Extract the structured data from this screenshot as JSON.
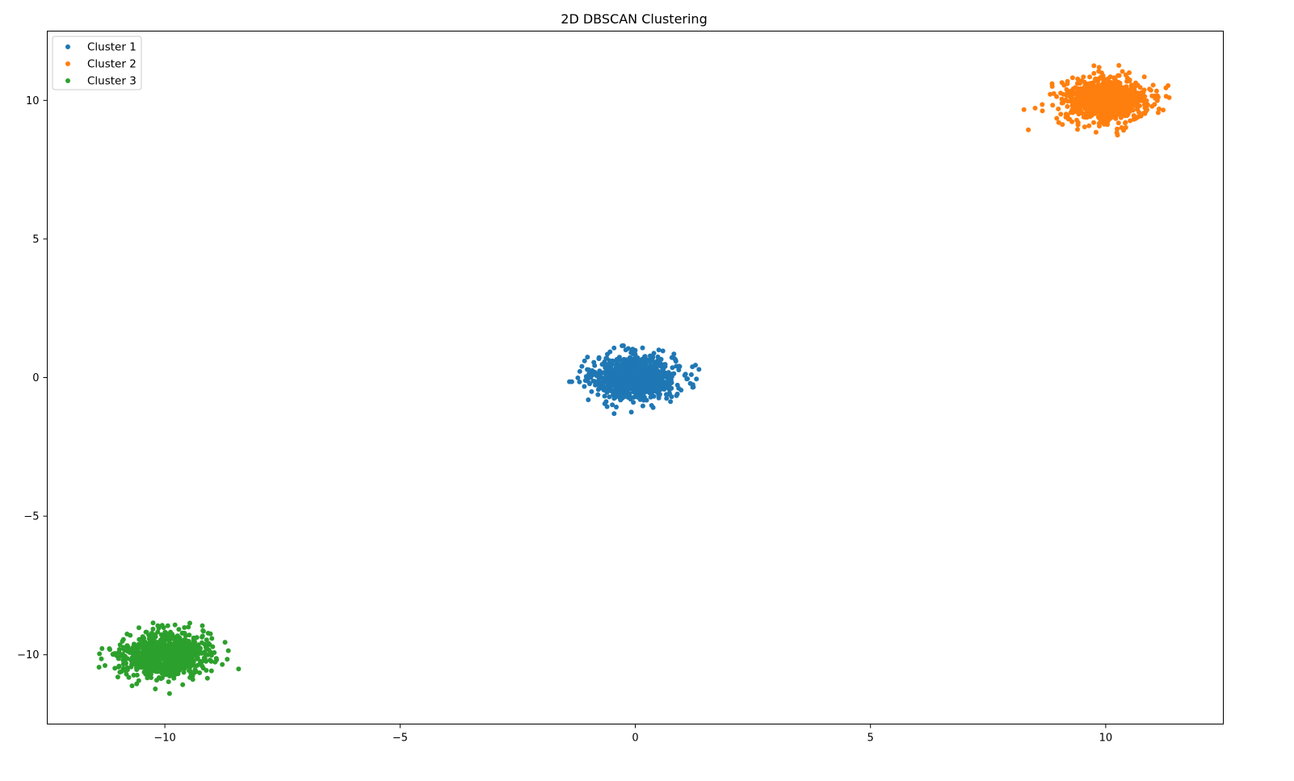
{
  "chart_data": {
    "type": "scatter",
    "title": "2D DBSCAN Clustering",
    "xlabel": "",
    "ylabel": "",
    "xlim": [
      -12.5,
      12.5
    ],
    "ylim": [
      -12.5,
      12.5
    ],
    "xticks": [
      -10,
      -5,
      0,
      5,
      10
    ],
    "xtick_labels": [
      "−10",
      "−5",
      "0",
      "5",
      "10"
    ],
    "yticks": [
      -10,
      -5,
      0,
      5,
      10
    ],
    "ytick_labels": [
      "−10",
      "−5",
      "0",
      "5",
      "10"
    ],
    "grid": false,
    "legend_position": "upper-left",
    "series": [
      {
        "name": "Cluster 1",
        "color": "#1f77b4",
        "center": [
          0,
          0
        ],
        "points": [
          [
            -0.42,
            0.31
          ],
          [
            0.18,
            -0.27
          ],
          [
            0.55,
            0.12
          ],
          [
            -0.71,
            -0.18
          ],
          [
            0.93,
            0.41
          ],
          [
            -1.18,
            0.22
          ],
          [
            1.22,
            -0.35
          ],
          [
            0.07,
            0.62
          ],
          [
            -0.33,
            -0.58
          ],
          [
            0.66,
            -0.61
          ],
          [
            -0.88,
            0.55
          ],
          [
            1.05,
            0.08
          ],
          [
            -1.35,
            -0.15
          ],
          [
            1.28,
            0.45
          ],
          [
            -0.15,
            1.05
          ],
          [
            0.38,
            -1.08
          ],
          [
            -0.6,
            -1.05
          ],
          [
            0.82,
            0.85
          ],
          [
            -1.0,
            -0.8
          ],
          [
            1.3,
            -0.05
          ],
          [
            -0.25,
            1.15
          ],
          [
            0.5,
            1.0
          ],
          [
            -1.4,
            -0.15
          ],
          [
            -0.45,
            -1.3
          ]
        ]
      },
      {
        "name": "Cluster 2",
        "color": "#ff7f0e",
        "center": [
          10,
          10
        ],
        "points": [
          [
            9.58,
            10.31
          ],
          [
            10.18,
            9.73
          ],
          [
            10.55,
            10.12
          ],
          [
            9.29,
            9.82
          ],
          [
            10.93,
            10.41
          ],
          [
            8.82,
            10.22
          ],
          [
            11.22,
            9.65
          ],
          [
            10.07,
            10.62
          ],
          [
            9.67,
            9.42
          ],
          [
            10.66,
            9.39
          ],
          [
            9.12,
            10.55
          ],
          [
            11.05,
            10.08
          ],
          [
            8.65,
            9.85
          ],
          [
            11.28,
            10.45
          ],
          [
            9.85,
            11.05
          ],
          [
            10.38,
            8.92
          ],
          [
            9.4,
            8.95
          ],
          [
            10.82,
            10.85
          ],
          [
            9.0,
            9.2
          ],
          [
            11.35,
            10.1
          ],
          [
            9.75,
            11.25
          ],
          [
            10.5,
            11.0
          ],
          [
            8.5,
            9.72
          ],
          [
            10.25,
            8.75
          ]
        ]
      },
      {
        "name": "Cluster 3",
        "color": "#2ca02c",
        "center": [
          -10,
          -10
        ],
        "points": [
          [
            -10.42,
            -9.69
          ],
          [
            -9.82,
            -10.27
          ],
          [
            -9.45,
            -9.88
          ],
          [
            -10.71,
            -10.18
          ],
          [
            -9.07,
            -9.59
          ],
          [
            -11.18,
            -9.78
          ],
          [
            -8.78,
            -10.35
          ],
          [
            -9.93,
            -9.38
          ],
          [
            -10.33,
            -10.58
          ],
          [
            -9.34,
            -10.61
          ],
          [
            -10.88,
            -9.45
          ],
          [
            -8.95,
            -9.92
          ],
          [
            -11.35,
            -10.15
          ],
          [
            -8.72,
            -9.55
          ],
          [
            -10.15,
            -8.95
          ],
          [
            -9.62,
            -11.08
          ],
          [
            -10.6,
            -11.05
          ],
          [
            -9.18,
            -9.15
          ],
          [
            -11.0,
            -10.8
          ],
          [
            -8.65,
            -9.85
          ],
          [
            -10.25,
            -8.85
          ],
          [
            -9.5,
            -9.0
          ],
          [
            -11.4,
            -10.45
          ],
          [
            -9.9,
            -11.4
          ]
        ]
      }
    ]
  }
}
